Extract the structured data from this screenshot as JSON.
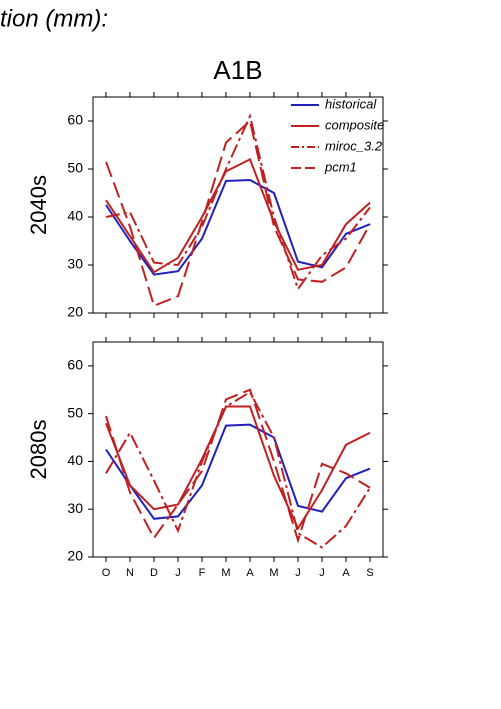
{
  "header": {
    "caption": "tion (mm):",
    "title": "A1B"
  },
  "chart_data": [
    {
      "type": "line",
      "ylabel": "2040s",
      "categories": [
        null,
        null,
        null,
        null,
        null,
        null,
        null,
        null,
        null,
        null,
        null,
        null
      ],
      "ylim": [
        20,
        65
      ],
      "yticks": [
        20,
        30,
        40,
        50,
        60
      ],
      "legend": "top-right",
      "series": [
        {
          "name": "historical",
          "color": "#2020c0",
          "dash": "solid",
          "values": [
            42.5,
            35,
            28,
            28.7,
            35.5,
            47.5,
            47.7,
            45,
            30.7,
            29.5,
            36.5,
            38.5
          ]
        },
        {
          "name": "composite",
          "color": "#c02020",
          "dash": "solid",
          "values": [
            43.5,
            36,
            28.5,
            31.5,
            40,
            49.5,
            52,
            39,
            29,
            30,
            38.5,
            43
          ]
        },
        {
          "name": "miroc_3.2",
          "color": "#c02020",
          "dash": "dashdot",
          "values": [
            40,
            41,
            30.5,
            30,
            38,
            50,
            61,
            40,
            25,
            32,
            35.5,
            42
          ]
        },
        {
          "name": "pcm1",
          "color": "#c02020",
          "dash": "dashed",
          "values": [
            51.5,
            38,
            21.5,
            23.5,
            39,
            55.5,
            60,
            38,
            27,
            26.5,
            29.5,
            38.5
          ]
        }
      ]
    },
    {
      "type": "line",
      "ylabel": "2080s",
      "categories": [
        "O",
        "N",
        "D",
        "J",
        "F",
        "M",
        "A",
        "M",
        "J",
        "J",
        "A",
        "S"
      ],
      "ylim": [
        20,
        65
      ],
      "yticks": [
        20,
        30,
        40,
        50,
        60
      ],
      "series": [
        {
          "color": "#2020c0",
          "dash": "solid",
          "values": [
            42.5,
            35,
            28,
            28.5,
            35,
            47.5,
            47.7,
            45,
            30.7,
            29.5,
            36.5,
            38.5
          ]
        },
        {
          "color": "#c02020",
          "dash": "solid",
          "values": [
            48,
            35,
            30,
            31,
            40.5,
            51.5,
            51.5,
            37,
            26,
            34,
            43.5,
            46
          ]
        },
        {
          "color": "#c02020",
          "dash": "dashdot",
          "values": [
            37.5,
            46,
            36,
            25.5,
            40,
            51.5,
            54.5,
            45,
            25,
            22,
            26.5,
            34.5
          ]
        },
        {
          "color": "#c02020",
          "dash": "dashed",
          "values": [
            49.5,
            33.5,
            24,
            31,
            38,
            53,
            55,
            40,
            23.5,
            39.5,
            37.5,
            34.5
          ]
        }
      ]
    }
  ]
}
